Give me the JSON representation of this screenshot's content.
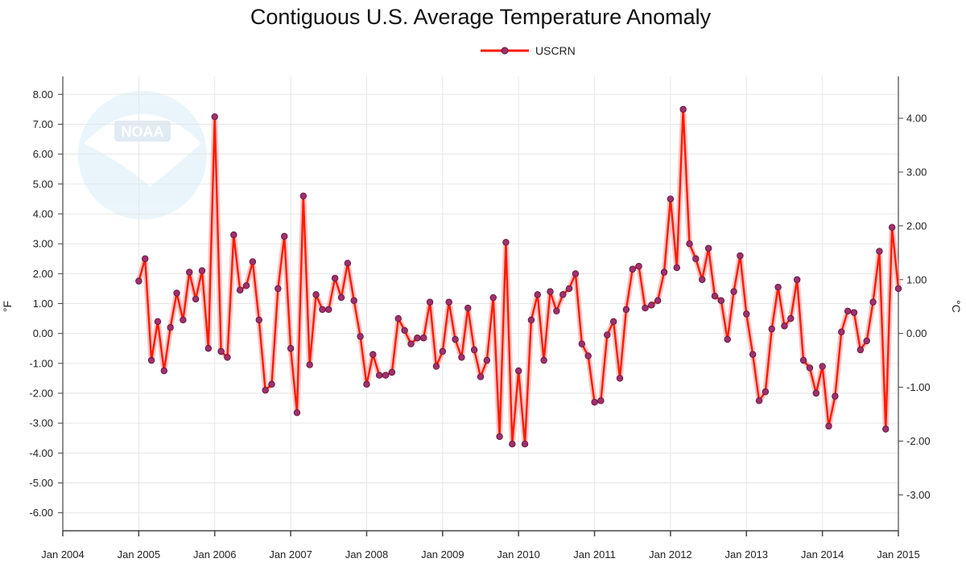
{
  "chart_data": {
    "type": "line",
    "title": "Contiguous U.S. Average Temperature Anomaly",
    "legend": {
      "label": "USCRN",
      "placement": "top-center"
    },
    "colors": {
      "line": "#ff1a00",
      "marker_fill": "#a0306e",
      "marker_stroke": "#5a1030",
      "band": "#f4a0a0",
      "grid": "#e6e6e6",
      "axis": "#444444"
    },
    "x_axis": {
      "ticks": [
        "Jan 2004",
        "Jan 2005",
        "Jan 2006",
        "Jan 2007",
        "Jan 2008",
        "Jan 2009",
        "Jan 2010",
        "Jan 2011",
        "Jan 2012",
        "Jan 2013",
        "Jan 2014",
        "Jan 2015"
      ],
      "range_months": [
        0,
        132
      ]
    },
    "y_axis_left": {
      "label": "°F",
      "ylim": [
        -6.6,
        8.6
      ],
      "ticks": [
        "8.00",
        "7.00",
        "6.00",
        "5.00",
        "4.00",
        "3.00",
        "2.00",
        "1.00",
        "0.00",
        "-1.00",
        "-2.00",
        "-3.00",
        "-4.00",
        "-5.00",
        "-6.00"
      ]
    },
    "y_axis_right": {
      "label": "°C",
      "ticks": [
        "4.00",
        "3.00",
        "2.00",
        "1.00",
        "0.00",
        "-1.00",
        "-2.00",
        "-3.00"
      ]
    },
    "grid": true,
    "series": [
      {
        "name": "USCRN",
        "start": "Jan 2005",
        "values": [
          1.75,
          2.5,
          -0.9,
          0.4,
          -1.25,
          0.2,
          1.35,
          0.45,
          2.05,
          1.15,
          2.1,
          -0.5,
          7.25,
          -0.6,
          -0.8,
          3.3,
          1.45,
          1.6,
          2.4,
          0.45,
          -1.9,
          -1.7,
          1.5,
          3.25,
          -0.5,
          -2.65,
          4.6,
          -1.05,
          1.3,
          0.8,
          0.8,
          1.85,
          1.2,
          2.35,
          1.1,
          -0.1,
          -1.7,
          -0.7,
          -1.4,
          -1.4,
          -1.3,
          0.5,
          0.1,
          -0.35,
          -0.15,
          -0.15,
          1.05,
          -1.1,
          -0.6,
          1.05,
          -0.2,
          -0.8,
          0.85,
          -0.55,
          -1.45,
          -0.9,
          1.2,
          -3.45,
          3.05,
          -3.7,
          -1.25,
          -3.7,
          0.45,
          1.3,
          -0.9,
          1.4,
          0.75,
          1.3,
          1.5,
          2.0,
          -0.35,
          -0.75,
          -2.3,
          -2.25,
          -0.05,
          0.4,
          -1.5,
          0.8,
          2.15,
          2.25,
          0.85,
          0.95,
          1.1,
          2.05,
          4.5,
          2.2,
          7.5,
          3.0,
          2.5,
          1.8,
          2.85,
          1.25,
          1.1,
          -0.2,
          1.4,
          2.6,
          0.65,
          -0.7,
          -2.25,
          -1.95,
          0.15,
          1.55,
          0.25,
          0.5,
          1.8,
          -0.9,
          -1.15,
          -2.0,
          -1.1,
          -3.1,
          -2.1,
          0.05,
          0.75,
          0.7,
          -0.55,
          -0.25,
          1.05,
          2.75,
          -3.2,
          3.55,
          1.5
        ]
      }
    ]
  }
}
